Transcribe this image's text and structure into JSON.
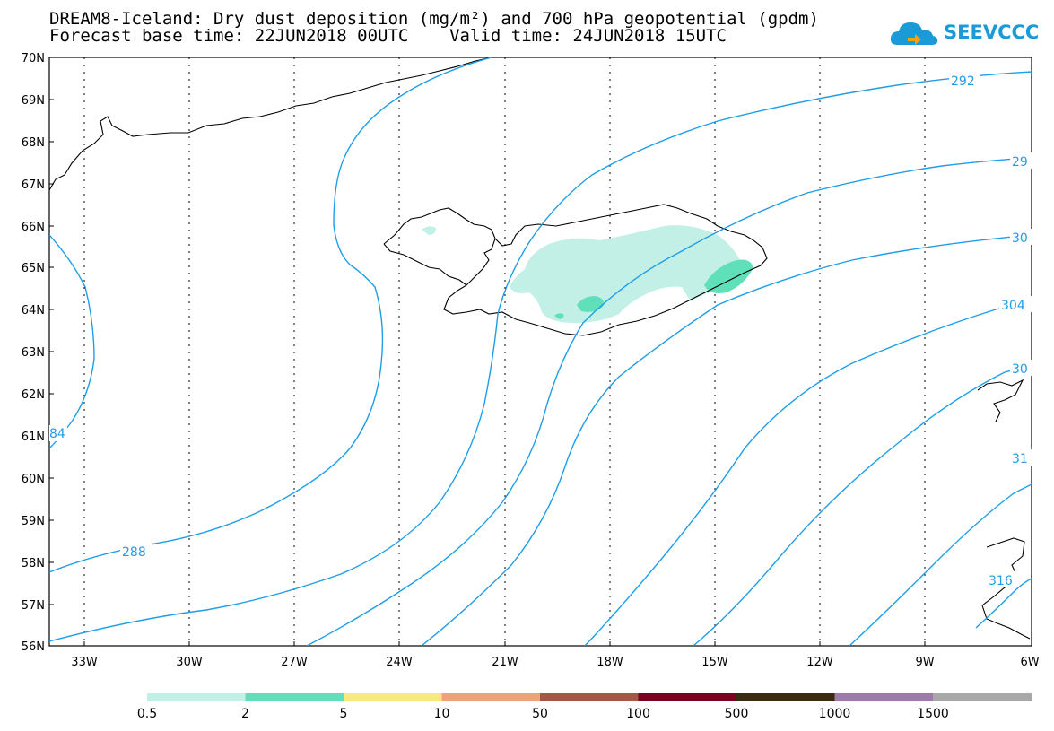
{
  "title": {
    "line1": "DREAM8-Iceland: Dry dust deposition (mg/m²) and 700 hPa geopotential (gpdm)",
    "line2": "Forecast base time: 22JUN2018 00UTC    Valid time: 24JUN2018 15UTC"
  },
  "logo": {
    "text": "SEEVCCC",
    "icon": "cloud-icon"
  },
  "colors": {
    "contour": "#1e9ee8",
    "coast": "#000000"
  },
  "map": {
    "lat_labels": [
      "70N",
      "69N",
      "68N",
      "67N",
      "66N",
      "65N",
      "64N",
      "63N",
      "62N",
      "61N",
      "60N",
      "59N",
      "58N",
      "57N",
      "56N"
    ],
    "lon_labels": [
      "33W",
      "30W",
      "27W",
      "24W",
      "21W",
      "18W",
      "15W",
      "12W",
      "9W",
      "6W"
    ],
    "contour_labels": [
      "292",
      "29",
      "30",
      "304",
      "30",
      "31",
      "316",
      "288",
      "84"
    ]
  },
  "colorbar": {
    "colors": [
      "#c2f0e6",
      "#5fe0b8",
      "#f7eb7c",
      "#f0a07a",
      "#a85547",
      "#7d0020",
      "#3a2a12",
      "#9d7aa8",
      "#a8a8a8"
    ],
    "labels": [
      "0.5",
      "2",
      "5",
      "10",
      "50",
      "100",
      "500",
      "1000",
      "1500"
    ]
  }
}
